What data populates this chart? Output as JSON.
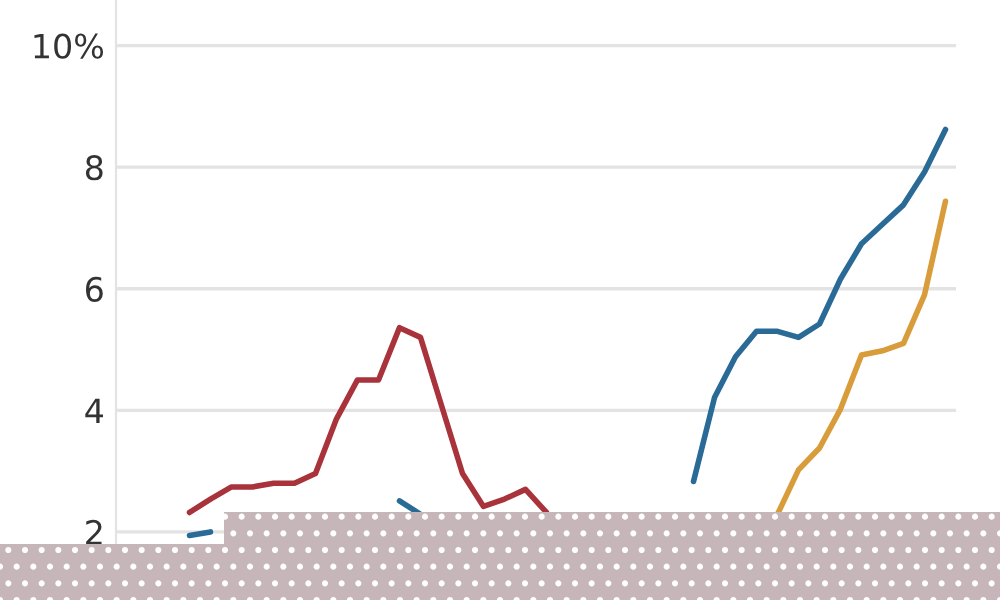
{
  "chart_data": {
    "type": "line",
    "categories": [
      null,
      null,
      null,
      null,
      null,
      null,
      null,
      null,
      null,
      null,
      null,
      null,
      null,
      null,
      null,
      null,
      null,
      null,
      null,
      null,
      null,
      null,
      null,
      null,
      null,
      null,
      null,
      null,
      null,
      null,
      null,
      null,
      null,
      null,
      null,
      null,
      null,
      null,
      null,
      null
    ],
    "series": [
      {
        "color": "#a8333a",
        "values": [
          null,
          null,
          null,
          2.32,
          2.54,
          2.74,
          2.74,
          2.8,
          2.8,
          2.96,
          3.86,
          4.5,
          4.5,
          5.36,
          5.2,
          4.08,
          2.96,
          2.42,
          2.54,
          2.7,
          2.32,
          null,
          null,
          null,
          null,
          null,
          null,
          null,
          null,
          null,
          null,
          null,
          null,
          null,
          null,
          null,
          null,
          null,
          null,
          null
        ]
      },
      {
        "color": "#2a6a96",
        "values": [
          null,
          null,
          null,
          1.94,
          2.0,
          null,
          null,
          null,
          null,
          null,
          null,
          null,
          null,
          2.51,
          2.29,
          null,
          null,
          null,
          null,
          null,
          null,
          null,
          null,
          null,
          null,
          null,
          null,
          2.83,
          4.21,
          4.88,
          5.3,
          5.3,
          5.2,
          5.42,
          6.16,
          6.74,
          7.06,
          7.38,
          7.92,
          8.62
        ]
      },
      {
        "color": "#d99c3a",
        "values": [
          null,
          null,
          null,
          null,
          null,
          null,
          null,
          null,
          null,
          null,
          null,
          null,
          null,
          null,
          null,
          null,
          null,
          null,
          null,
          null,
          null,
          null,
          null,
          null,
          null,
          null,
          null,
          null,
          null,
          null,
          null,
          2.29,
          3.02,
          3.38,
          4.02,
          4.91,
          4.98,
          5.1,
          5.9,
          7.44
        ]
      }
    ],
    "ylim": [
      0.88,
      10.75
    ],
    "yticks": [
      2,
      4,
      6,
      8,
      {
        "value": 10,
        "label": "10%"
      }
    ],
    "grid": "y",
    "tick_labels": "y",
    "line_style": "solid",
    "marker": "none"
  }
}
